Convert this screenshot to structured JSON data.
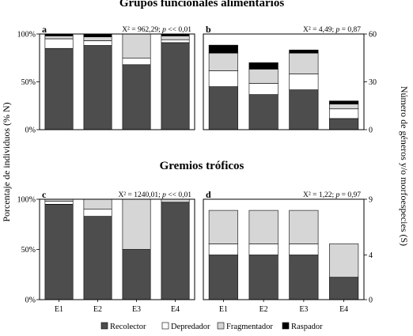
{
  "section_titles": [
    "Grupos funcionales alimentarios",
    "Gremios tróficos"
  ],
  "y_label_left": "Porcentaje de individuos (% N)",
  "y_label_right": "Número de géneros y/o morfoespecies (S)",
  "legend": [
    {
      "label": "Recolector",
      "color": "#4d4d4d"
    },
    {
      "label": "Depredador",
      "color": "#ffffff"
    },
    {
      "label": "Fragmentador",
      "color": "#d6d6d6"
    },
    {
      "label": "Raspador",
      "color": "#000000"
    }
  ],
  "chart_data": [
    {
      "panel": "a",
      "type": "bar",
      "stacked": true,
      "categories": [
        "E1",
        "E2",
        "E3",
        "E4"
      ],
      "ylim": [
        0,
        100
      ],
      "yticks": [
        "0%",
        "50%",
        "100%"
      ],
      "stat_prefix": "X² = 962,29; ",
      "stat_p": "p",
      "stat_suffix": " << 0,01",
      "series": [
        {
          "name": "Recolector",
          "values": [
            85,
            88,
            68,
            91
          ]
        },
        {
          "name": "Depredador",
          "values": [
            10,
            5,
            7,
            3
          ]
        },
        {
          "name": "Fragmentador",
          "values": [
            3,
            4,
            25,
            4
          ]
        },
        {
          "name": "Raspador",
          "values": [
            2,
            3,
            0,
            2
          ]
        }
      ]
    },
    {
      "panel": "b",
      "type": "bar",
      "stacked": true,
      "categories": [
        "E1",
        "E2",
        "E3",
        "E4"
      ],
      "ylim": [
        0,
        60
      ],
      "yticks": [
        "0",
        "30",
        "60"
      ],
      "stat_prefix": "X² = 4,49; ",
      "stat_p": "p",
      "stat_suffix": " = 0,87",
      "series": [
        {
          "name": "Recolector",
          "values": [
            27,
            22,
            25,
            7
          ]
        },
        {
          "name": "Depredador",
          "values": [
            10,
            7,
            10,
            6
          ]
        },
        {
          "name": "Fragmentador",
          "values": [
            11,
            9,
            13,
            3
          ]
        },
        {
          "name": "Raspador",
          "values": [
            5,
            4,
            2,
            2
          ]
        }
      ]
    },
    {
      "panel": "c",
      "type": "bar",
      "stacked": true,
      "categories": [
        "E1",
        "E2",
        "E3",
        "E4"
      ],
      "ylim": [
        0,
        100
      ],
      "yticks": [
        "0%",
        "50%",
        "100%"
      ],
      "stat_prefix": "X² = 1240,01; ",
      "stat_p": "p",
      "stat_suffix": " << 0,01",
      "series": [
        {
          "name": "Recolector",
          "values": [
            95,
            83,
            50,
            97
          ]
        },
        {
          "name": "Depredador",
          "values": [
            3,
            7,
            0,
            0
          ]
        },
        {
          "name": "Fragmentador",
          "values": [
            2,
            10,
            50,
            3
          ]
        }
      ]
    },
    {
      "panel": "d",
      "type": "bar",
      "stacked": true,
      "categories": [
        "E1",
        "E2",
        "E3",
        "E4"
      ],
      "ylim": [
        0,
        9
      ],
      "yticks": [
        "0",
        "4",
        "9"
      ],
      "stat_prefix": "X² = 1,22; ",
      "stat_p": "p",
      "stat_suffix": " = 0,97",
      "series": [
        {
          "name": "Recolector",
          "values": [
            4,
            4,
            4,
            2
          ]
        },
        {
          "name": "Depredador",
          "values": [
            1,
            1,
            1,
            0
          ]
        },
        {
          "name": "Fragmentador",
          "values": [
            3,
            3,
            3,
            3
          ]
        }
      ]
    }
  ]
}
